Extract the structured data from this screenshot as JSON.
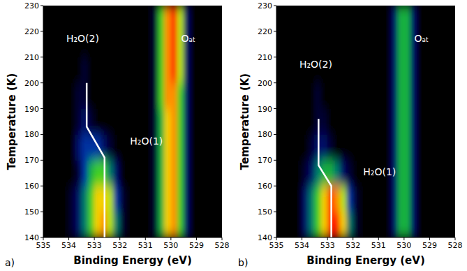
{
  "chart_data": [
    {
      "type": "heatmap",
      "panel_label": "a)",
      "x_label": "Binding Energy (eV)",
      "y_label": "Temperature (K)",
      "xlim": [
        535,
        528
      ],
      "ylim": [
        140,
        230
      ],
      "xticks": [
        535,
        534,
        533,
        532,
        531,
        530,
        529,
        528
      ],
      "yticks": [
        140,
        150,
        160,
        170,
        180,
        190,
        200,
        210,
        220,
        230
      ],
      "zlim": [
        0,
        10
      ],
      "x": [
        534.875,
        534.625,
        534.375,
        534.125,
        533.875,
        533.625,
        533.375,
        533.125,
        532.875,
        532.625,
        532.375,
        532.125,
        531.875,
        531.625,
        531.375,
        531.125,
        530.875,
        530.625,
        530.375,
        530.125,
        529.875,
        529.625,
        529.375,
        529.125,
        528.875,
        528.625,
        528.375,
        528.125
      ],
      "y": [
        145,
        155,
        165,
        175,
        185,
        195,
        205,
        215,
        225
      ],
      "values": [
        [
          0,
          0,
          0,
          0,
          1,
          2,
          4,
          6,
          8,
          9,
          7,
          4,
          1,
          0,
          0,
          0,
          0,
          1,
          5,
          8,
          9,
          6,
          2,
          0,
          0,
          0,
          0,
          0
        ],
        [
          0,
          0,
          0,
          0,
          1,
          2,
          4,
          6,
          8,
          8,
          7,
          3,
          1,
          0,
          0,
          0,
          0,
          1,
          5,
          8,
          9,
          6,
          2,
          0,
          0,
          0,
          0,
          0
        ],
        [
          0,
          0,
          0,
          0,
          0,
          1,
          3,
          5,
          6,
          6,
          4,
          2,
          0,
          0,
          0,
          0,
          0,
          1,
          5,
          8,
          9,
          6,
          2,
          0,
          0,
          0,
          0,
          0
        ],
        [
          0,
          0,
          0,
          0,
          0,
          2,
          3,
          3,
          3,
          2,
          1,
          0,
          0,
          0,
          0,
          0,
          0,
          1,
          5,
          8,
          9,
          6,
          2,
          0,
          0,
          0,
          0,
          0
        ],
        [
          0,
          0,
          0,
          0,
          0,
          1,
          2,
          1,
          0,
          0,
          0,
          0,
          0,
          0,
          0,
          0,
          0,
          1,
          5,
          8,
          9,
          6,
          2,
          0,
          0,
          0,
          0,
          0
        ],
        [
          0,
          0,
          0,
          0,
          0,
          1,
          1,
          0,
          0,
          0,
          0,
          0,
          0,
          0,
          0,
          0,
          0,
          1,
          6,
          9,
          9,
          6,
          2,
          0,
          0,
          0,
          0,
          0
        ],
        [
          0,
          0,
          0,
          0,
          0,
          0,
          1,
          0,
          0,
          0,
          0,
          0,
          0,
          0,
          0,
          0,
          0,
          1,
          6,
          9,
          10,
          7,
          2,
          0,
          0,
          0,
          0,
          0
        ],
        [
          0,
          0,
          0,
          0,
          0,
          0,
          0,
          0,
          0,
          0,
          0,
          0,
          0,
          0,
          0,
          0,
          0,
          1,
          6,
          9,
          10,
          7,
          2,
          0,
          0,
          0,
          0,
          0
        ],
        [
          0,
          0,
          0,
          0,
          0,
          0,
          0,
          0,
          0,
          0,
          0,
          0,
          0,
          0,
          0,
          0,
          0,
          1,
          6,
          9,
          10,
          7,
          2,
          0,
          0,
          0,
          0,
          0
        ]
      ],
      "annotations": [
        "H₂O(2)",
        "H₂O(1)",
        "Oₐₜ"
      ],
      "peak_track": {
        "x": [
          533.3,
          533.3,
          532.6,
          532.6
        ],
        "y": [
          200,
          183,
          171,
          140
        ],
        "color": "#ffffff"
      }
    },
    {
      "type": "heatmap",
      "panel_label": "b)",
      "x_label": "Binding Energy (eV)",
      "y_label": "Temperature (K)",
      "xlim": [
        535,
        528
      ],
      "ylim": [
        140,
        230
      ],
      "xticks": [
        535,
        534,
        533,
        532,
        531,
        530,
        529,
        528
      ],
      "yticks": [
        140,
        150,
        160,
        170,
        180,
        190,
        200,
        210,
        220,
        230
      ],
      "zlim": [
        0,
        10
      ],
      "x": [
        534.875,
        534.625,
        534.375,
        534.125,
        533.875,
        533.625,
        533.375,
        533.125,
        532.875,
        532.625,
        532.375,
        532.125,
        531.875,
        531.625,
        531.375,
        531.125,
        530.875,
        530.625,
        530.375,
        530.125,
        529.875,
        529.625,
        529.375,
        529.125,
        528.875,
        528.625,
        528.375,
        528.125
      ],
      "y": [
        145,
        155,
        165,
        175,
        185,
        195,
        205,
        215,
        225
      ],
      "values": [
        [
          0,
          0,
          0,
          0,
          2,
          4,
          6,
          8,
          10,
          10,
          8,
          4,
          1,
          0,
          0,
          0,
          0,
          0,
          2,
          5,
          5,
          2,
          0,
          0,
          0,
          0,
          0,
          0
        ],
        [
          0,
          0,
          0,
          0,
          2,
          4,
          6,
          8,
          10,
          9,
          7,
          3,
          1,
          0,
          0,
          0,
          0,
          0,
          2,
          5,
          5,
          2,
          0,
          0,
          0,
          0,
          0,
          0
        ],
        [
          0,
          0,
          0,
          0,
          1,
          2,
          4,
          5,
          5,
          4,
          2,
          1,
          0,
          0,
          0,
          0,
          0,
          0,
          2,
          5,
          5,
          2,
          0,
          0,
          0,
          0,
          0,
          0
        ],
        [
          0,
          0,
          0,
          0,
          0,
          1,
          2,
          2,
          1,
          0,
          0,
          0,
          0,
          0,
          0,
          0,
          0,
          0,
          2,
          5,
          5,
          2,
          0,
          0,
          0,
          0,
          0,
          0
        ],
        [
          0,
          0,
          0,
          0,
          0,
          0,
          1,
          1,
          0,
          0,
          0,
          0,
          0,
          0,
          0,
          0,
          0,
          0,
          2,
          5,
          5,
          2,
          0,
          0,
          0,
          0,
          0,
          0
        ],
        [
          0,
          0,
          0,
          0,
          0,
          0,
          1,
          0,
          0,
          0,
          0,
          0,
          0,
          0,
          0,
          0,
          0,
          0,
          2,
          5,
          5,
          2,
          0,
          0,
          0,
          0,
          0,
          0
        ],
        [
          0,
          0,
          0,
          0,
          0,
          0,
          0,
          0,
          0,
          0,
          0,
          0,
          0,
          0,
          0,
          0,
          0,
          0,
          2,
          5,
          5,
          2,
          0,
          0,
          0,
          0,
          0,
          0
        ],
        [
          0,
          0,
          0,
          0,
          0,
          0,
          0,
          0,
          0,
          0,
          0,
          0,
          0,
          0,
          0,
          0,
          0,
          0,
          2,
          5,
          5,
          2,
          0,
          0,
          0,
          0,
          0,
          0
        ],
        [
          0,
          0,
          0,
          0,
          0,
          0,
          0,
          0,
          0,
          0,
          0,
          0,
          0,
          0,
          0,
          0,
          0,
          0,
          2,
          5,
          5,
          2,
          0,
          0,
          0,
          0,
          0,
          0
        ]
      ],
      "annotations": [
        "H₂O(2)",
        "H₂O(1)",
        "Oₐₜ"
      ],
      "peak_track": {
        "x": [
          533.35,
          533.35,
          532.85,
          532.85
        ],
        "y": [
          186,
          168,
          160,
          140
        ],
        "color": "#ffffff"
      }
    }
  ]
}
